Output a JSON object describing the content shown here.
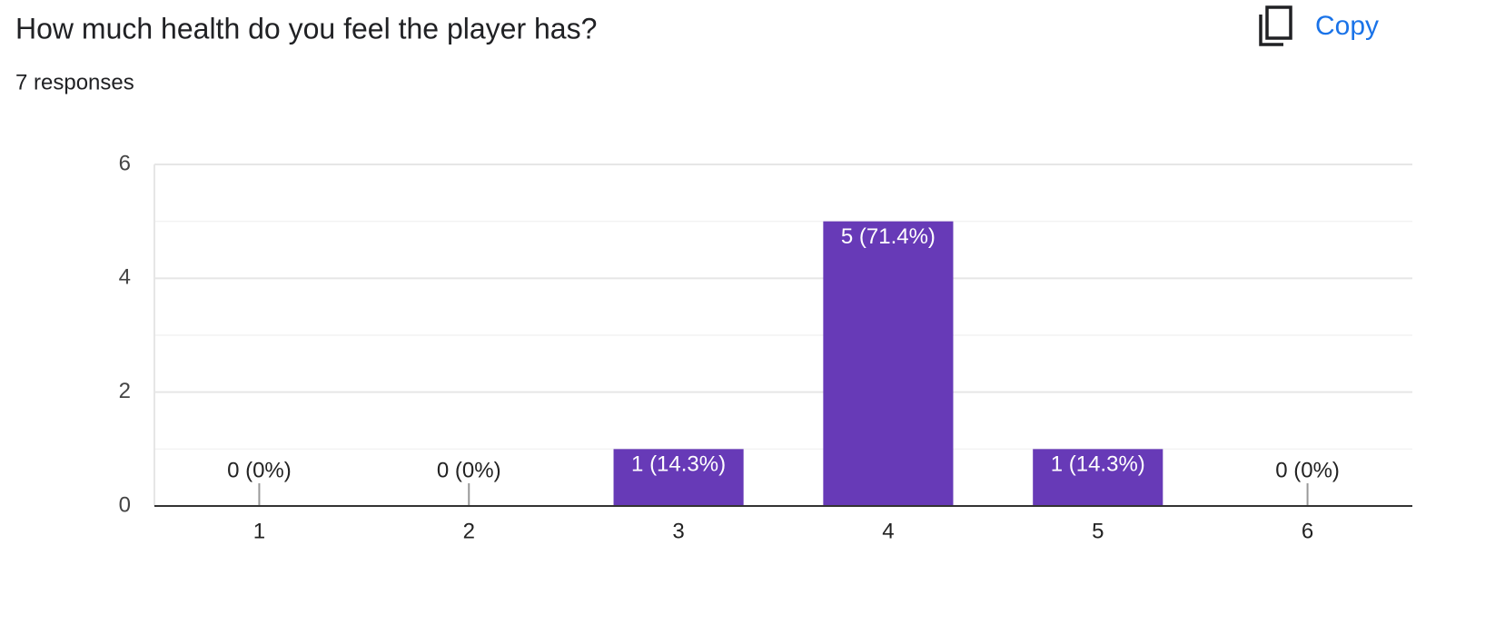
{
  "copy_button": "Copy",
  "chart_data": {
    "type": "bar",
    "title": "How much health do you feel the player has?",
    "subtitle": "7 responses",
    "categories": [
      "1",
      "2",
      "3",
      "4",
      "5",
      "6"
    ],
    "values": [
      0,
      0,
      1,
      5,
      1,
      0
    ],
    "value_labels": [
      "0 (0%)",
      "0 (0%)",
      "1 (14.3%)",
      "5 (71.4%)",
      "1 (14.3%)",
      "0 (0%)"
    ],
    "color": "#673ab7",
    "ylim": [
      0,
      6
    ],
    "yticks": [
      0,
      2,
      4,
      6
    ],
    "minor_yticks": [
      1,
      3,
      5
    ],
    "grid": true
  }
}
